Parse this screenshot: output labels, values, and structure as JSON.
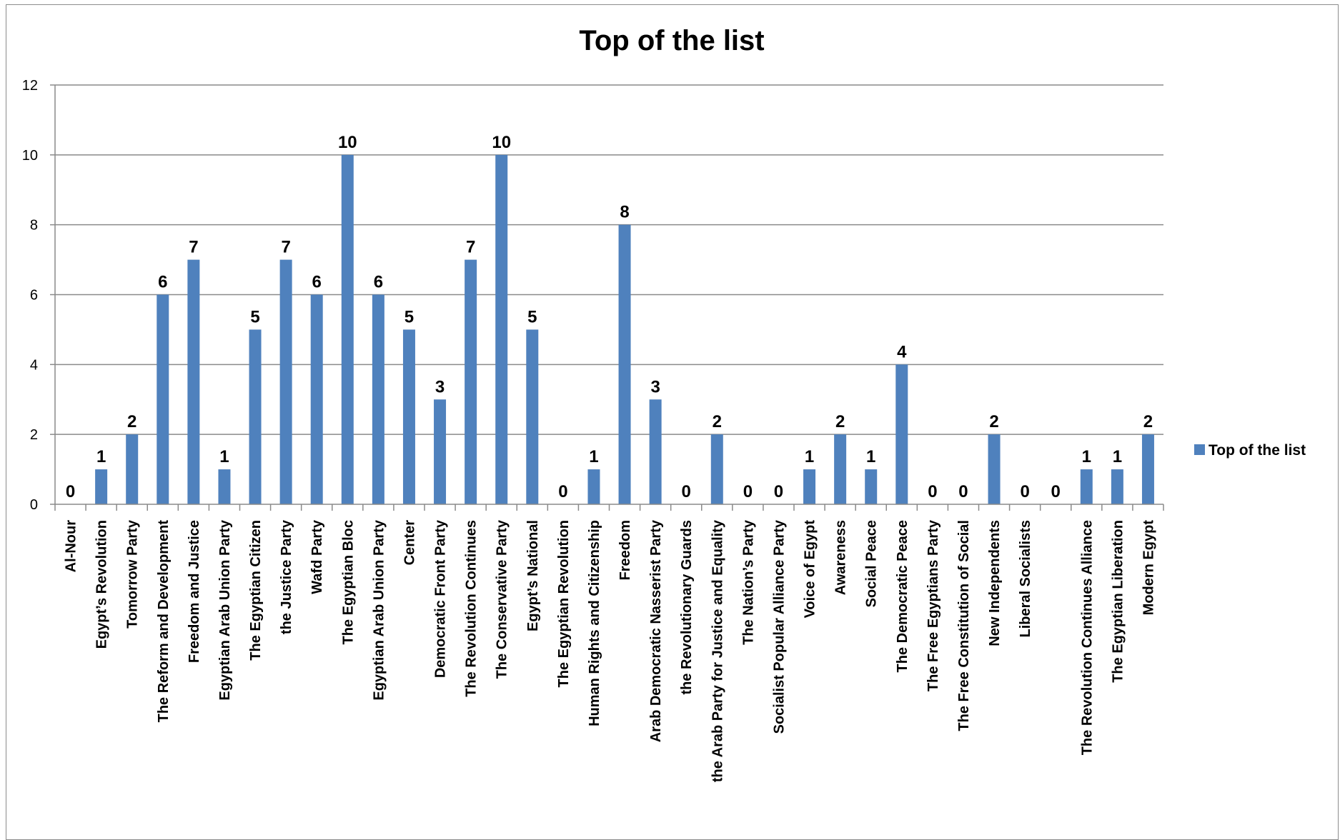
{
  "chart_data": {
    "type": "bar",
    "title": "Top of the list",
    "xlabel": "",
    "ylabel": "",
    "ylim": [
      0,
      12
    ],
    "yticks": [
      "0",
      "2",
      "4",
      "6",
      "8",
      "10",
      "12"
    ],
    "grid": true,
    "legend_position": "right",
    "categories": [
      "Al-Nour",
      "Egypt’s Revolution",
      "Tomorrow Party",
      "The Reform and Development",
      "Freedom  and Justice",
      "Egyptian Arab Union Party",
      "The Egyptian Citizen",
      "the Justice Party",
      "Wafd Party",
      "The Egyptian Bloc",
      "Egyptian Arab Union Party",
      "Center",
      "Democratic Front Party",
      "The Revolution Continues",
      "The Conservative Party",
      "Egypt’s National",
      "The Egyptian Revolution",
      "Human Rights and Citizenship",
      "Freedom",
      "Arab Democratic Nasserist Party",
      "the Revolutionary Guards",
      "the Arab Party for Justice and Equality",
      "The Nation’s Party",
      "Socialist Popular Alliance Party",
      "Voice of Egypt",
      "Awareness",
      "Social Peace",
      "The Democratic Peace",
      "The Free Egyptians Party",
      "The Free Constitution of Social",
      "New Independents",
      "Liberal Socialists",
      "",
      "The Revolution Continues Alliance",
      "The Egyptian Liberation",
      "Modern Egypt"
    ],
    "series": [
      {
        "name": "Top of the list",
        "color": "#4f81bd",
        "values": [
          0,
          1,
          2,
          6,
          7,
          1,
          5,
          7,
          6,
          10,
          6,
          5,
          3,
          7,
          10,
          5,
          0,
          1,
          8,
          3,
          0,
          2,
          0,
          0,
          1,
          2,
          1,
          4,
          0,
          0,
          2,
          0,
          0,
          1,
          1,
          2
        ]
      }
    ]
  }
}
